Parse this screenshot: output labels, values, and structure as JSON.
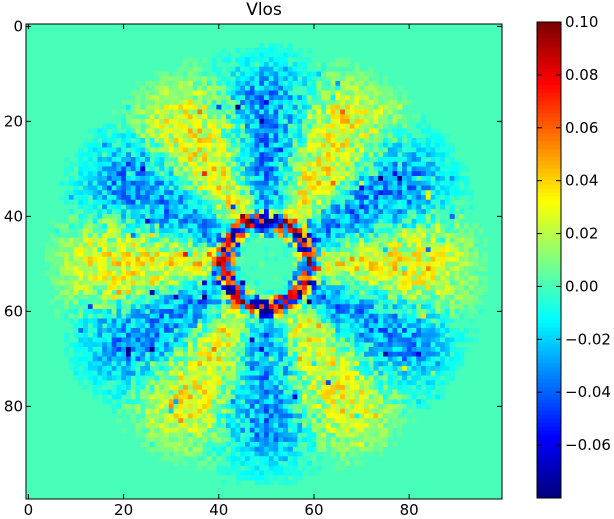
{
  "chart_data": {
    "type": "heatmap",
    "title": "Vlos",
    "xlabel": "",
    "ylabel": "",
    "grid_size": 100,
    "xlim": [
      0,
      100
    ],
    "ylim": [
      100,
      0
    ],
    "x_ticks": [
      0,
      20,
      40,
      60,
      80
    ],
    "y_ticks": [
      0,
      20,
      40,
      60,
      80
    ],
    "colorbar": {
      "colormap": "jet",
      "vmin": -0.08,
      "vmax": 0.1,
      "ticks": [
        0.1,
        0.08,
        0.06,
        0.04,
        0.02,
        0.0,
        -0.02,
        -0.04,
        -0.06
      ],
      "tick_labels": [
        "0.10",
        "0.08",
        "0.06",
        "0.04",
        "0.02",
        "0.00",
        "−0.02",
        "−0.04",
        "−0.06"
      ]
    },
    "field": {
      "background_value": 0.0,
      "center": [
        50,
        50
      ],
      "outer_radius": 48,
      "inner_ring_radius": 9,
      "inner_ring_amplitude": 0.08,
      "spoke_count": 12,
      "spoke_amplitude": 0.03,
      "noise_amplitude": 0.02
    }
  }
}
